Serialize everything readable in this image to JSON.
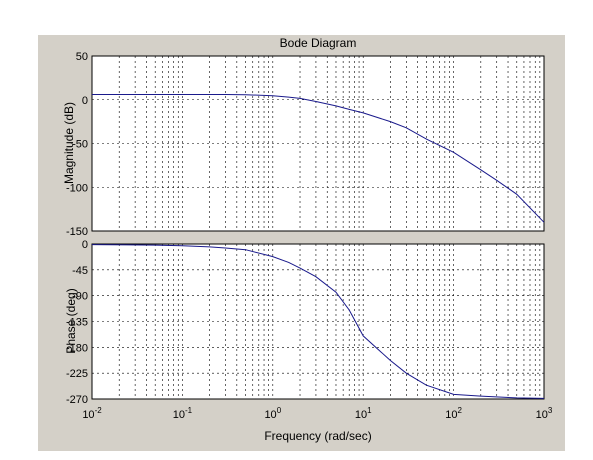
{
  "figure": {
    "background": "#d4d0c8",
    "axes_background": "#ffffff",
    "curve_color": "#1a1a8c"
  },
  "chart_data": [
    {
      "type": "line",
      "title": "Bode Diagram",
      "xlabel": "",
      "ylabel": "Magnitude (dB)",
      "xscale": "log",
      "xlim": [
        0.01,
        1000
      ],
      "ylim": [
        -150,
        50
      ],
      "yticks": [
        "50",
        "0",
        "-50",
        "-100",
        "-150"
      ],
      "grid": true,
      "series": [
        {
          "x": [
            0.01,
            0.1,
            0.3,
            0.5,
            1,
            1.5,
            2,
            3,
            5,
            7,
            10,
            20,
            30,
            50,
            100,
            200,
            300,
            500,
            1000
          ],
          "values": [
            6,
            6,
            6,
            5.8,
            4.5,
            3,
            1.5,
            -2,
            -7,
            -11,
            -15,
            -25,
            -32,
            -45,
            -60,
            -80,
            -92,
            -108,
            -140
          ]
        }
      ]
    },
    {
      "type": "line",
      "title": "",
      "xlabel": "Frequency  (rad/sec)",
      "ylabel": "Phase (deg)",
      "xscale": "log",
      "xlim": [
        0.01,
        1000
      ],
      "ylim": [
        -270,
        0
      ],
      "yticks": [
        "0",
        "-45",
        "-90",
        "-135",
        "-180",
        "-225",
        "-270"
      ],
      "xticks": [
        {
          "base": "10",
          "exp": "-2"
        },
        {
          "base": "10",
          "exp": "-1"
        },
        {
          "base": "10",
          "exp": "0"
        },
        {
          "base": "10",
          "exp": "1"
        },
        {
          "base": "10",
          "exp": "2"
        },
        {
          "base": "10",
          "exp": "3"
        }
      ],
      "grid": true,
      "series": [
        {
          "x": [
            0.01,
            0.05,
            0.1,
            0.2,
            0.3,
            0.5,
            1,
            1.5,
            2,
            3,
            5,
            7,
            10,
            20,
            30,
            50,
            100,
            200,
            500,
            1000
          ],
          "values": [
            -1,
            -2,
            -3,
            -5,
            -7,
            -10,
            -22,
            -32,
            -42,
            -57,
            -84,
            -115,
            -160,
            -203,
            -225,
            -246,
            -262,
            -265,
            -268,
            -269
          ]
        }
      ]
    }
  ]
}
